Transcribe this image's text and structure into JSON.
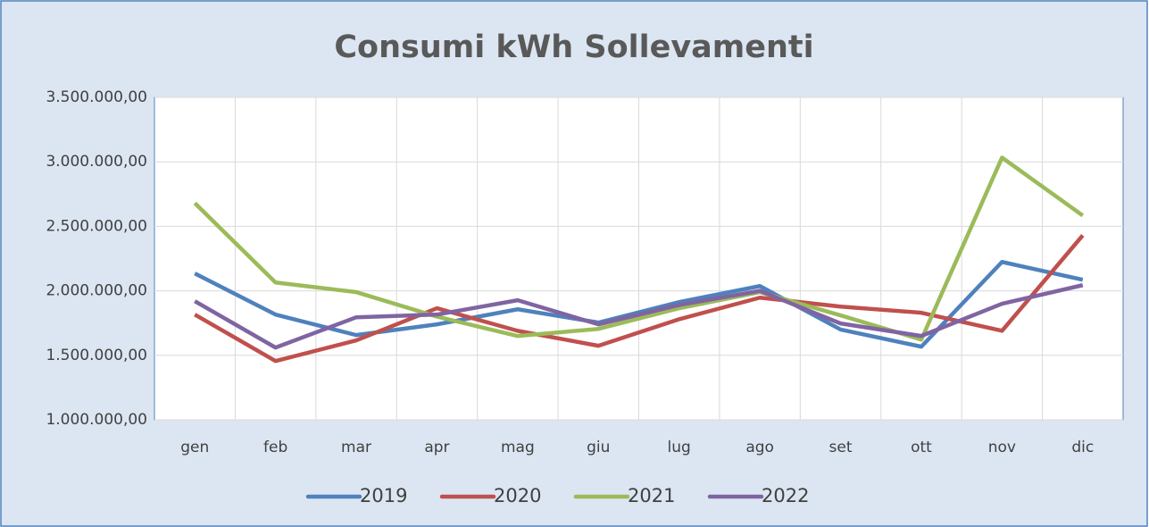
{
  "chart_data": {
    "type": "line",
    "title": "Consumi kWh Sollevamenti",
    "categories": [
      "gen",
      "feb",
      "mar",
      "apr",
      "mag",
      "giu",
      "lug",
      "ago",
      "set",
      "ott",
      "nov",
      "dic"
    ],
    "series": [
      {
        "name": "2019",
        "color": "#4f81bd",
        "values": [
          2135000,
          1816000,
          1657000,
          1740000,
          1857000,
          1754000,
          1913000,
          2037000,
          1700000,
          1567000,
          2224000,
          2086000
        ]
      },
      {
        "name": "2020",
        "color": "#c0504d",
        "values": [
          1816000,
          1456000,
          1616000,
          1865000,
          1690000,
          1574000,
          1780000,
          1947000,
          1878000,
          1830000,
          1690000,
          2430000
        ]
      },
      {
        "name": "2021",
        "color": "#9bbb59",
        "values": [
          2680000,
          2065000,
          1990000,
          1800000,
          1650000,
          1705000,
          1865000,
          1990000,
          1810000,
          1622000,
          3033000,
          2584000
        ]
      },
      {
        "name": "2022",
        "color": "#8064a2",
        "values": [
          1920000,
          1560000,
          1795000,
          1816000,
          1927000,
          1740000,
          1890000,
          2000000,
          1747000,
          1650000,
          1900000,
          2044000
        ]
      }
    ],
    "ylim": [
      1000000,
      3500000
    ],
    "yticks": [
      {
        "value": 1000000,
        "label": "1.000.000,00"
      },
      {
        "value": 1500000,
        "label": "1.500.000,00"
      },
      {
        "value": 2000000,
        "label": "2.000.000,00"
      },
      {
        "value": 2500000,
        "label": "2.500.000,00"
      },
      {
        "value": 3000000,
        "label": "3.000.000,00"
      },
      {
        "value": 3500000,
        "label": "3.500.000,00"
      }
    ],
    "grid": true,
    "legend": "bottom"
  }
}
